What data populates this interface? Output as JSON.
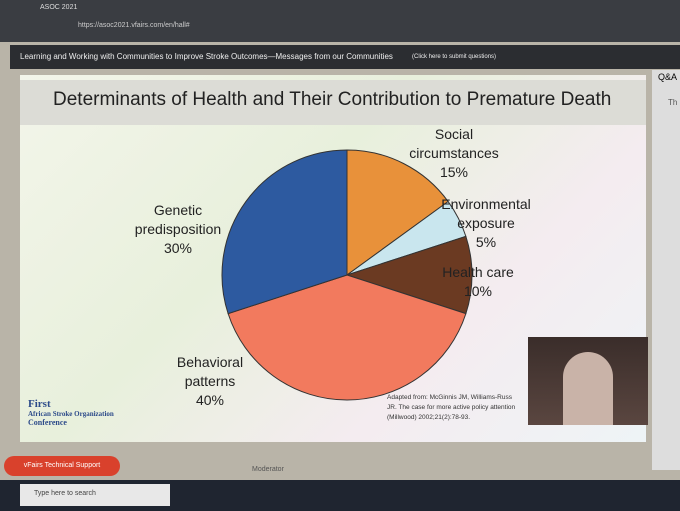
{
  "browser": {
    "tab": "ASOC 2021",
    "url": "https://asoc2021.vfairs.com/en/hall#"
  },
  "header": {
    "title": "Learning and Working with Communities to Improve Stroke Outcomes—Messages from our Communities",
    "link": "(Click here to submit questions)"
  },
  "side_panel": {
    "tab": "Q&A",
    "text": "Th"
  },
  "chart_data": {
    "type": "pie",
    "title": "Determinants of Health and Their Contribution to Premature Death",
    "categories": [
      "Social circumstances",
      "Environmental exposure",
      "Health care",
      "Behavioral patterns",
      "Genetic predisposition"
    ],
    "values": [
      15,
      5,
      10,
      40,
      30
    ],
    "value_labels": [
      "15%",
      "5%",
      "10%",
      "40%",
      "30%"
    ],
    "colors": [
      "#e8913a",
      "#c9e6ee",
      "#6b3a22",
      "#f27a5e",
      "#2d5aa0"
    ]
  },
  "citation": {
    "lines": [
      "Adapted from:  McGinnis JM, Williams-Russ",
      "JR. The case for more active policy attention",
      "(Millwood) 2002;21(2):78-93."
    ]
  },
  "logo": {
    "lines": [
      "First",
      "African Stroke Organization",
      "Conference"
    ]
  },
  "support_button": "vFairs Technical Support",
  "moderator": "Moderator",
  "taskbar": {
    "search": "Type here to search"
  }
}
